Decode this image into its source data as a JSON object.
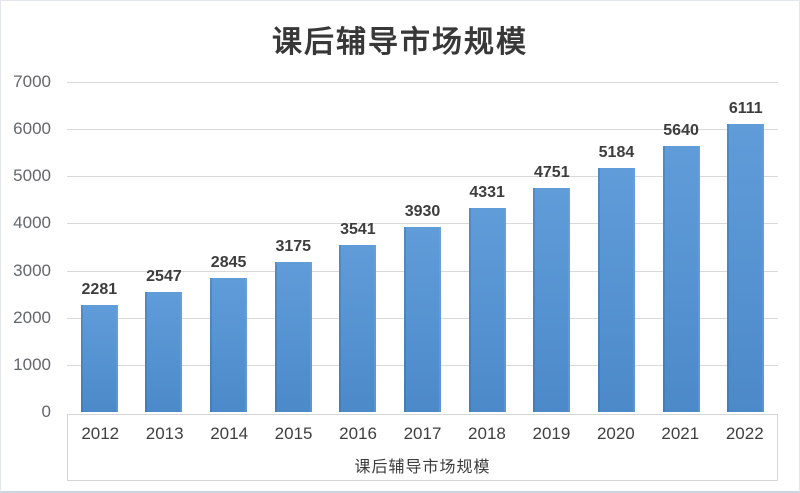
{
  "chart_data": {
    "type": "bar",
    "title": "课后辅导市场规模",
    "categories": [
      "2012",
      "2013",
      "2014",
      "2015",
      "2016",
      "2017",
      "2018",
      "2019",
      "2020",
      "2021",
      "2022"
    ],
    "values": [
      2281,
      2547,
      2845,
      3175,
      3541,
      3930,
      4331,
      4751,
      5184,
      5640,
      6111
    ],
    "xlabel": "课后辅导市场规模",
    "ylabel": "",
    "ylim": [
      0,
      7000
    ],
    "yticks": [
      0,
      1000,
      2000,
      3000,
      4000,
      5000,
      6000,
      7000
    ],
    "grid": true,
    "legend_position": "none",
    "data_labels": true,
    "bar_color": "#5592d1",
    "gridline_color": "#d9d9d9",
    "axis_text_color": "#63666b",
    "label_text_color": "#3d3d3d",
    "title_color": "#383838"
  }
}
